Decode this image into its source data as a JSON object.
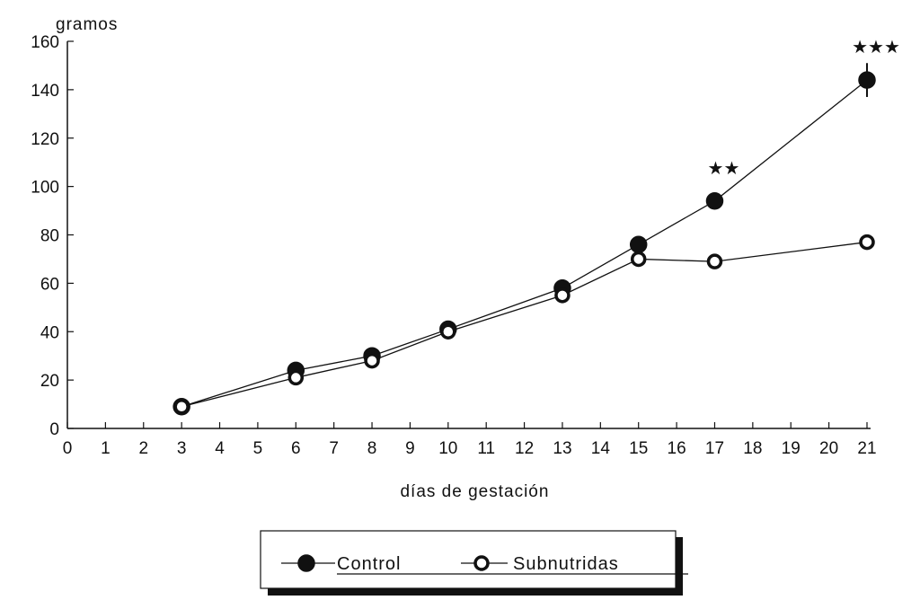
{
  "chart_data": {
    "type": "line",
    "ylabel": "gramos",
    "xlabel": "días de gestación",
    "xlim": [
      0,
      21
    ],
    "ylim": [
      0,
      160
    ],
    "x_ticks": [
      0,
      1,
      2,
      3,
      4,
      5,
      6,
      7,
      8,
      9,
      10,
      11,
      12,
      13,
      14,
      15,
      16,
      17,
      18,
      19,
      20,
      21
    ],
    "y_ticks": [
      0,
      20,
      40,
      60,
      80,
      100,
      120,
      140,
      160
    ],
    "grid": false,
    "legend_position": "bottom",
    "series": [
      {
        "name": "Control",
        "marker": "filled-circle",
        "x": [
          3,
          6,
          8,
          10,
          13,
          15,
          17,
          21
        ],
        "y": [
          9,
          24,
          30,
          41,
          58,
          76,
          94,
          144
        ]
      },
      {
        "name": "Subnutridas",
        "marker": "open-circle",
        "x": [
          3,
          6,
          8,
          10,
          13,
          15,
          17,
          21
        ],
        "y": [
          9,
          21,
          28,
          40,
          55,
          70,
          69,
          77
        ]
      }
    ],
    "annotations": [
      {
        "text": "★★",
        "x": 17
      },
      {
        "text": "★★★",
        "x": 21
      }
    ]
  }
}
